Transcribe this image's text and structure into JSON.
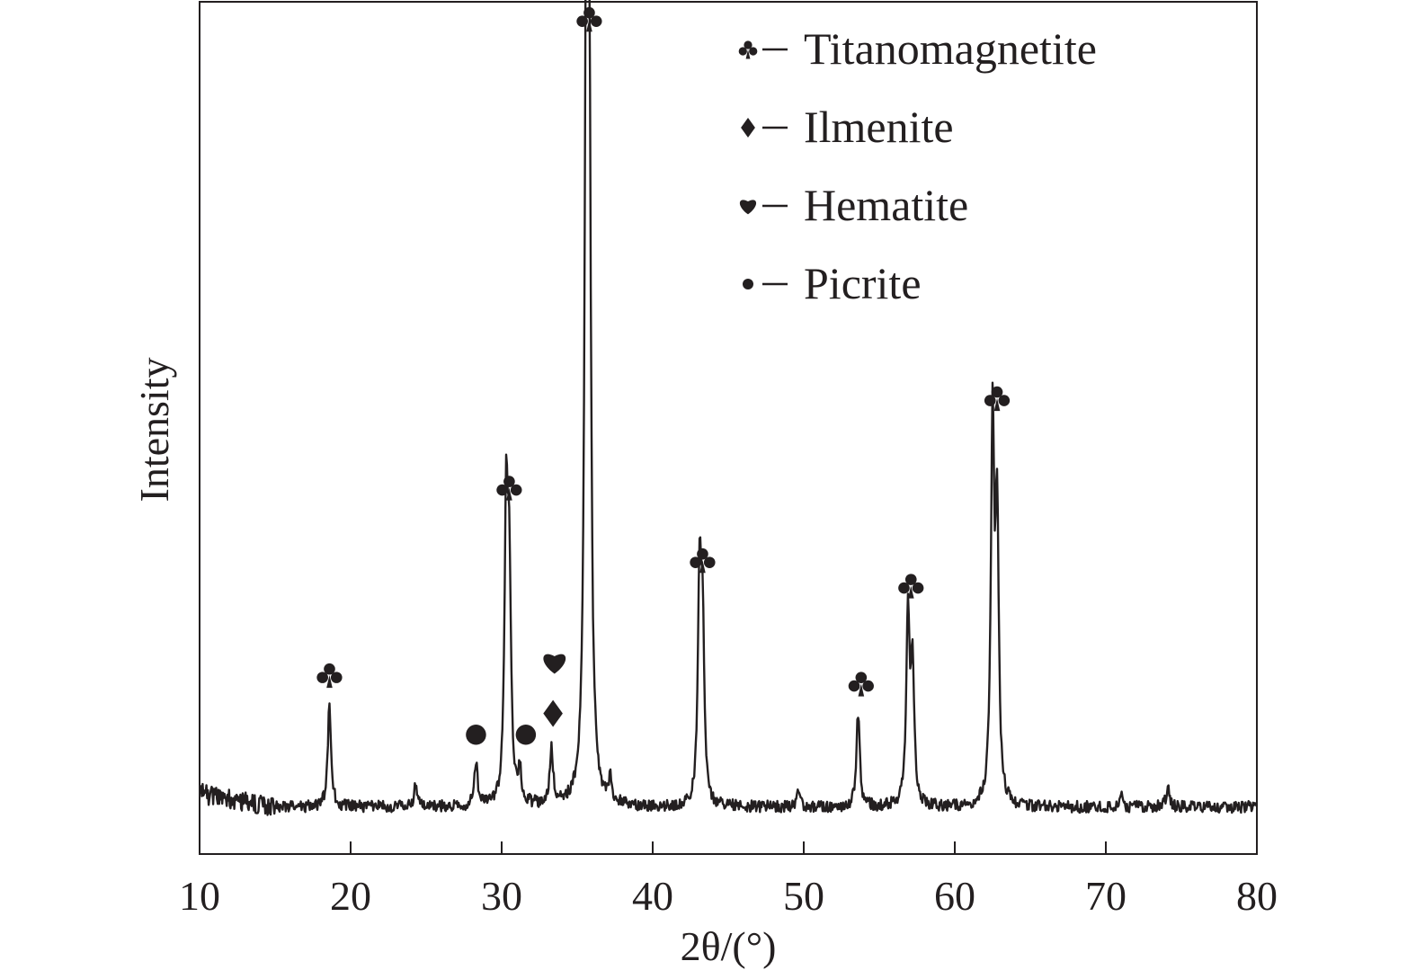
{
  "chart_data": {
    "type": "line",
    "title": "",
    "xlabel": "2θ/(°)",
    "ylabel": "Intensity",
    "xlim": [
      10,
      80
    ],
    "ylim": [
      0,
      100
    ],
    "xticks": [
      10,
      20,
      30,
      40,
      50,
      60,
      70,
      80
    ],
    "yticks_shown": false,
    "grid": false,
    "legend_position": "top-right",
    "color": "#231f20",
    "legend": [
      {
        "label": "Titanomagnetite",
        "marker": "club"
      },
      {
        "label": "Ilmenite",
        "marker": "diamond"
      },
      {
        "label": "Hematite",
        "marker": "heart"
      },
      {
        "label": "Picrite",
        "marker": "dot"
      }
    ],
    "series": [
      {
        "baseline": 5.5,
        "peaks": [
          {
            "x": 18.6,
            "y": 17.5,
            "phase": "Titanomagnetite"
          },
          {
            "x": 24.3,
            "y": 8.0
          },
          {
            "x": 28.3,
            "y": 10.5,
            "phase": "Picrite"
          },
          {
            "x": 30.3,
            "y": 39.5,
            "phase": "Titanomagnetite"
          },
          {
            "x": 30.5,
            "y": 31.0
          },
          {
            "x": 31.2,
            "y": 9.0,
            "phase": "Picrite"
          },
          {
            "x": 33.3,
            "y": 12.0,
            "phase": "Ilmenite, Hematite"
          },
          {
            "x": 35.6,
            "y": 94.5,
            "phase": "Titanomagnetite"
          },
          {
            "x": 35.8,
            "y": 80.0
          },
          {
            "x": 37.2,
            "y": 8.0
          },
          {
            "x": 43.1,
            "y": 31.0,
            "phase": "Titanomagnetite"
          },
          {
            "x": 43.3,
            "y": 26.0
          },
          {
            "x": 49.6,
            "y": 7.0
          },
          {
            "x": 53.6,
            "y": 16.5,
            "phase": "Titanomagnetite"
          },
          {
            "x": 56.9,
            "y": 28.0,
            "phase": "Titanomagnetite"
          },
          {
            "x": 57.2,
            "y": 22.0
          },
          {
            "x": 62.5,
            "y": 50.0,
            "phase": "Titanomagnetite"
          },
          {
            "x": 62.8,
            "y": 38.0
          },
          {
            "x": 71.0,
            "y": 7.0
          },
          {
            "x": 74.1,
            "y": 8.0
          }
        ]
      }
    ],
    "annotations": [
      {
        "marker": "club",
        "x": 18.6,
        "y": 21.0
      },
      {
        "marker": "dot",
        "x": 28.3,
        "y": 14.0
      },
      {
        "marker": "club",
        "x": 30.5,
        "y": 43.0
      },
      {
        "marker": "dot",
        "x": 31.6,
        "y": 14.0
      },
      {
        "marker": "diamond",
        "x": 33.4,
        "y": 16.5
      },
      {
        "marker": "heart",
        "x": 33.5,
        "y": 22.5
      },
      {
        "marker": "club",
        "x": 35.8,
        "y": 98.0
      },
      {
        "marker": "club",
        "x": 43.3,
        "y": 34.5
      },
      {
        "marker": "club",
        "x": 53.8,
        "y": 20.0
      },
      {
        "marker": "club",
        "x": 57.1,
        "y": 31.5
      },
      {
        "marker": "club",
        "x": 62.8,
        "y": 53.5
      }
    ]
  }
}
